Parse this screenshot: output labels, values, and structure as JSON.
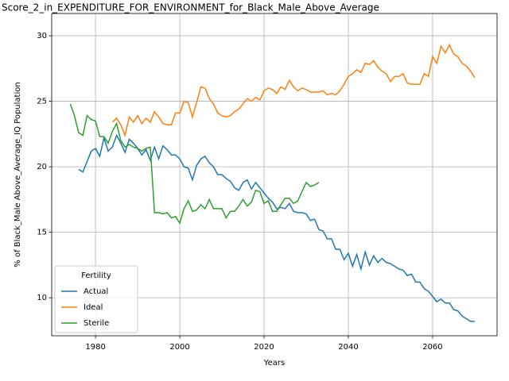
{
  "chart_data": {
    "type": "line",
    "title": "Score_2_in_EXPENDITURE_FOR_ENVIRONMENT_for_Black_Male_Above_Average",
    "xlabel": "Years",
    "ylabel": "% of Black_Male Above_Average_IQ Population",
    "legend_title": "Fertility",
    "legend_loc": "lower left",
    "grid": true,
    "xlim": [
      1969.6,
      2075.3
    ],
    "xticks": [
      1980,
      2000,
      2020,
      2040,
      2060
    ],
    "ylim": [
      7.1,
      31.7
    ],
    "yticks": [
      10,
      15,
      20,
      25,
      30
    ],
    "x": [
      1974,
      1975,
      1976,
      1977,
      1978,
      1979,
      1980,
      1981,
      1982,
      1983,
      1984,
      1985,
      1986,
      1987,
      1988,
      1989,
      1990,
      1991,
      1992,
      1993,
      1994,
      1995,
      1996,
      1997,
      1998,
      1999,
      2000,
      2001,
      2002,
      2003,
      2004,
      2005,
      2006,
      2007,
      2008,
      2009,
      2010,
      2011,
      2012,
      2013,
      2014,
      2015,
      2016,
      2017,
      2018,
      2019,
      2020,
      2021,
      2022,
      2023,
      2024,
      2025,
      2026,
      2027,
      2028,
      2029,
      2030,
      2031,
      2032,
      2033,
      2034,
      2035,
      2036,
      2037,
      2038,
      2039,
      2040,
      2041,
      2042,
      2043,
      2044,
      2045,
      2046,
      2047,
      2048,
      2049,
      2050,
      2051,
      2052,
      2053,
      2054,
      2055,
      2056,
      2057,
      2058,
      2059,
      2060,
      2061,
      2062,
      2063,
      2064,
      2065,
      2066,
      2067,
      2068,
      2069,
      2070
    ],
    "series": [
      {
        "name": "Actual",
        "color": "#1f77b4",
        "values": [
          null,
          null,
          19.8,
          19.6,
          20.4,
          21.2,
          21.4,
          20.8,
          22.2,
          21.2,
          21.5,
          22.4,
          21.8,
          21.1,
          22.1,
          21.8,
          21.4,
          20.9,
          21.3,
          20.5,
          21.5,
          20.6,
          21.6,
          21.3,
          20.9,
          20.9,
          20.6,
          20.0,
          19.9,
          19.0,
          20.1,
          20.6,
          20.8,
          20.3,
          20.0,
          19.4,
          19.4,
          19.1,
          18.9,
          18.4,
          18.2,
          18.8,
          19.0,
          18.3,
          18.8,
          18.4,
          18.0,
          17.6,
          17.3,
          16.8,
          16.9,
          16.8,
          17.2,
          16.6,
          16.5,
          16.5,
          16.4,
          15.9,
          16.0,
          15.2,
          15.1,
          14.5,
          14.5,
          13.7,
          13.7,
          12.9,
          13.4,
          12.4,
          13.3,
          12.2,
          13.5,
          12.5,
          13.2,
          12.7,
          13.0,
          12.7,
          12.6,
          12.4,
          12.2,
          12.1,
          11.7,
          11.8,
          11.2,
          11.2,
          10.7,
          10.5,
          10.1,
          9.7,
          9.9,
          9.6,
          9.6,
          9.1,
          9.0,
          8.6,
          8.4,
          8.2,
          8.2
        ]
      },
      {
        "name": "Ideal",
        "color": "#ff7f0e",
        "values": [
          null,
          null,
          null,
          null,
          null,
          null,
          null,
          null,
          null,
          null,
          23.4,
          23.7,
          23.2,
          22.4,
          23.8,
          23.4,
          23.9,
          23.3,
          23.7,
          23.4,
          24.2,
          23.8,
          23.3,
          23.2,
          23.2,
          24.1,
          24.1,
          25.0,
          24.9,
          23.8,
          24.9,
          26.1,
          26.0,
          25.2,
          24.8,
          24.1,
          23.9,
          23.8,
          23.9,
          24.2,
          24.4,
          24.8,
          25.2,
          25.0,
          25.3,
          25.1,
          25.8,
          26.0,
          25.9,
          25.6,
          26.1,
          25.9,
          26.6,
          26.1,
          25.8,
          26.0,
          25.9,
          25.7,
          25.7,
          25.7,
          25.8,
          25.5,
          25.6,
          25.5,
          25.8,
          26.3,
          26.9,
          27.1,
          27.4,
          27.2,
          27.9,
          27.8,
          28.1,
          27.6,
          27.3,
          27.1,
          26.5,
          26.9,
          26.9,
          27.1,
          26.4,
          26.3,
          26.3,
          26.3,
          27.1,
          26.9,
          28.4,
          27.9,
          29.2,
          28.7,
          29.3,
          28.6,
          28.4,
          27.9,
          27.7,
          27.3,
          26.8
        ]
      },
      {
        "name": "Sterile",
        "color": "#2ca02c",
        "values": [
          24.8,
          23.9,
          22.6,
          22.4,
          23.9,
          23.6,
          23.5,
          22.3,
          22.3,
          21.8,
          22.7,
          23.3,
          22.0,
          21.5,
          21.7,
          21.5,
          21.4,
          21.2,
          21.4,
          21.5,
          16.5,
          16.5,
          16.4,
          16.5,
          16.1,
          16.2,
          15.7,
          16.8,
          17.4,
          16.6,
          16.7,
          17.1,
          16.8,
          17.5,
          16.8,
          16.8,
          16.8,
          16.1,
          16.6,
          16.6,
          17.0,
          17.5,
          17.0,
          17.3,
          18.2,
          18.1,
          17.2,
          17.4,
          16.6,
          16.6,
          17.1,
          17.6,
          17.6,
          17.2,
          17.4,
          18.1,
          18.8,
          18.5,
          18.6,
          18.8,
          null,
          null,
          null,
          null,
          null,
          null,
          null,
          null,
          null,
          null,
          null,
          null,
          null,
          null,
          null,
          null,
          null,
          null,
          null,
          null,
          null,
          null,
          null,
          null,
          null,
          null,
          null,
          null,
          null,
          null,
          null,
          null,
          null,
          null,
          null,
          null,
          null
        ]
      }
    ]
  }
}
